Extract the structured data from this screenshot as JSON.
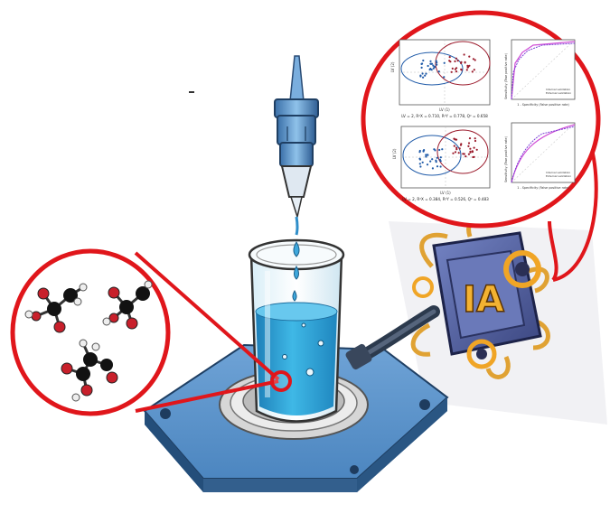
{
  "colors": {
    "highlight_ring": "#e0161b",
    "liquid": "#2fa6d6",
    "platform": "#4b86c2",
    "platform_dark": "#2d5f92",
    "chip_body": "#5868a8",
    "chip_label": "#f3b232",
    "cable": "#2c3a4d",
    "carbon": "#121212",
    "oxygen": "#c8202b",
    "hydrogen": "#eeeeee",
    "class_a": "#1f5aa8",
    "class_b": "#9b1b2c",
    "roc_curve": "#d04fd6"
  },
  "icons": [
    "pipette-icon",
    "beaker-icon",
    "heater-plate-icon",
    "ai-chip-icon",
    "molecule-icon",
    "cable-icon"
  ],
  "chip": {
    "label": "IA"
  },
  "plots": {
    "top_scatter": {
      "caption": "LV = 2, R²X = 0.710, R²Y = 0.778, Q² = 0.658",
      "ylabel": "LV (2)",
      "xlabel": "LV (1)"
    },
    "bottom_scatter": {
      "caption": "LV = 2, R²X = 0.384, R²Y = 0.526, Q² = 0.483",
      "ylabel": "LV (2)",
      "xlabel": "LV (1)"
    },
    "top_roc": {
      "ylabel": "Sensitivity (True positive rate)",
      "xlabel": "1 - Specificity (False positive rate)",
      "legend": [
        "Internal validation",
        "External validation"
      ]
    },
    "bottom_roc": {
      "ylabel": "Sensitivity (True positive rate)",
      "xlabel": "1 - Specificity (False positive rate)",
      "legend": [
        "Internal validation",
        "External validation"
      ]
    }
  }
}
